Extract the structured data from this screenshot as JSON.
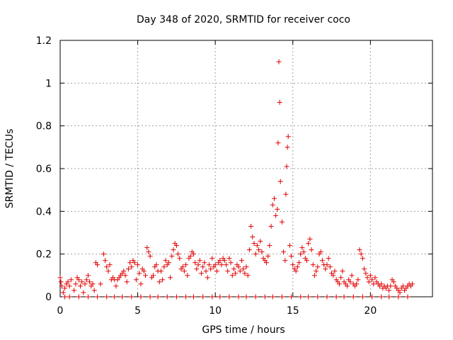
{
  "chart_data": {
    "type": "scatter",
    "title": "Day 348 of 2020, SRMTID for receiver coco",
    "xlabel": "GPS time / hours",
    "ylabel": "SRMTID / TECUs",
    "xlim": [
      0,
      24
    ],
    "ylim": [
      0,
      1.2
    ],
    "x_ticks": [
      0,
      5,
      10,
      15,
      20
    ],
    "y_ticks": [
      0,
      0.2,
      0.4,
      0.6,
      0.8,
      1,
      1.2
    ],
    "x_tick_labels": [
      "0",
      "5",
      "10",
      "15",
      "20"
    ],
    "y_tick_labels": [
      "0",
      "0.2",
      "0.4",
      "0.6",
      "0.8",
      "1",
      "1.2"
    ],
    "grid": true,
    "marker": "+",
    "color": "#e00000",
    "series": [
      {
        "name": "SRMTID",
        "points": [
          [
            0.0,
            0.09
          ],
          [
            0.05,
            0.07
          ],
          [
            0.1,
            0.05
          ],
          [
            0.2,
            0.02
          ],
          [
            0.3,
            0.04
          ],
          [
            0.4,
            0.06
          ],
          [
            0.5,
            0.07
          ],
          [
            0.6,
            0.05
          ],
          [
            0.7,
            0.08
          ],
          [
            0.9,
            0.03
          ],
          [
            1.0,
            0.06
          ],
          [
            1.1,
            0.09
          ],
          [
            1.2,
            0.08
          ],
          [
            1.3,
            0.05
          ],
          [
            1.4,
            0.07
          ],
          [
            1.5,
            0.02
          ],
          [
            1.6,
            0.06
          ],
          [
            1.7,
            0.08
          ],
          [
            1.8,
            0.1
          ],
          [
            1.9,
            0.07
          ],
          [
            2.0,
            0.05
          ],
          [
            2.1,
            0.06
          ],
          [
            2.2,
            0.03
          ],
          [
            2.3,
            0.16
          ],
          [
            2.4,
            0.15
          ],
          [
            2.6,
            0.06
          ],
          [
            2.8,
            0.2
          ],
          [
            2.9,
            0.17
          ],
          [
            3.0,
            0.14
          ],
          [
            3.1,
            0.12
          ],
          [
            3.2,
            0.15
          ],
          [
            3.3,
            0.08
          ],
          [
            3.4,
            0.09
          ],
          [
            3.5,
            0.08
          ],
          [
            3.6,
            0.05
          ],
          [
            3.7,
            0.08
          ],
          [
            3.8,
            0.09
          ],
          [
            3.9,
            0.1
          ],
          [
            4.0,
            0.11
          ],
          [
            4.1,
            0.12
          ],
          [
            4.2,
            0.1
          ],
          [
            4.3,
            0.07
          ],
          [
            4.4,
            0.13
          ],
          [
            4.5,
            0.16
          ],
          [
            4.6,
            0.14
          ],
          [
            4.7,
            0.17
          ],
          [
            4.8,
            0.16
          ],
          [
            4.9,
            0.08
          ],
          [
            5.0,
            0.15
          ],
          [
            5.1,
            0.11
          ],
          [
            5.2,
            0.06
          ],
          [
            5.3,
            0.13
          ],
          [
            5.4,
            0.12
          ],
          [
            5.5,
            0.1
          ],
          [
            5.6,
            0.23
          ],
          [
            5.7,
            0.21
          ],
          [
            5.8,
            0.19
          ],
          [
            5.9,
            0.09
          ],
          [
            6.0,
            0.1
          ],
          [
            6.1,
            0.14
          ],
          [
            6.2,
            0.15
          ],
          [
            6.3,
            0.12
          ],
          [
            6.4,
            0.07
          ],
          [
            6.5,
            0.12
          ],
          [
            6.6,
            0.08
          ],
          [
            6.7,
            0.14
          ],
          [
            6.8,
            0.17
          ],
          [
            6.9,
            0.15
          ],
          [
            7.0,
            0.16
          ],
          [
            7.1,
            0.09
          ],
          [
            7.2,
            0.19
          ],
          [
            7.3,
            0.22
          ],
          [
            7.4,
            0.25
          ],
          [
            7.5,
            0.24
          ],
          [
            7.6,
            0.2
          ],
          [
            7.7,
            0.18
          ],
          [
            7.8,
            0.13
          ],
          [
            7.9,
            0.14
          ],
          [
            8.0,
            0.12
          ],
          [
            8.1,
            0.15
          ],
          [
            8.2,
            0.1
          ],
          [
            8.3,
            0.18
          ],
          [
            8.4,
            0.19
          ],
          [
            8.5,
            0.21
          ],
          [
            8.6,
            0.2
          ],
          [
            8.7,
            0.16
          ],
          [
            8.8,
            0.13
          ],
          [
            8.9,
            0.15
          ],
          [
            9.0,
            0.17
          ],
          [
            9.1,
            0.11
          ],
          [
            9.2,
            0.14
          ],
          [
            9.3,
            0.16
          ],
          [
            9.4,
            0.12
          ],
          [
            9.5,
            0.09
          ],
          [
            9.6,
            0.15
          ],
          [
            9.7,
            0.13
          ],
          [
            9.8,
            0.18
          ],
          [
            9.9,
            0.14
          ],
          [
            10.0,
            0.15
          ],
          [
            10.1,
            0.12
          ],
          [
            10.2,
            0.16
          ],
          [
            10.3,
            0.17
          ],
          [
            10.4,
            0.15
          ],
          [
            10.5,
            0.18
          ],
          [
            10.6,
            0.17
          ],
          [
            10.7,
            0.15
          ],
          [
            10.8,
            0.12
          ],
          [
            10.9,
            0.18
          ],
          [
            11.0,
            0.16
          ],
          [
            11.1,
            0.1
          ],
          [
            11.2,
            0.13
          ],
          [
            11.3,
            0.11
          ],
          [
            11.4,
            0.15
          ],
          [
            11.5,
            0.14
          ],
          [
            11.6,
            0.12
          ],
          [
            11.7,
            0.17
          ],
          [
            11.8,
            0.13
          ],
          [
            11.9,
            0.11
          ],
          [
            12.0,
            0.14
          ],
          [
            12.1,
            0.1
          ],
          [
            12.2,
            0.22
          ],
          [
            12.3,
            0.33
          ],
          [
            12.4,
            0.28
          ],
          [
            12.5,
            0.25
          ],
          [
            12.6,
            0.2
          ],
          [
            12.7,
            0.24
          ],
          [
            12.8,
            0.22
          ],
          [
            12.9,
            0.26
          ],
          [
            13.0,
            0.21
          ],
          [
            13.1,
            0.18
          ],
          [
            13.2,
            0.17
          ],
          [
            13.3,
            0.16
          ],
          [
            13.4,
            0.19
          ],
          [
            13.5,
            0.24
          ],
          [
            13.6,
            0.33
          ],
          [
            13.7,
            0.43
          ],
          [
            13.8,
            0.46
          ],
          [
            13.9,
            0.38
          ],
          [
            14.0,
            0.41
          ],
          [
            14.05,
            0.72
          ],
          [
            14.1,
            1.1
          ],
          [
            14.15,
            0.91
          ],
          [
            14.2,
            0.54
          ],
          [
            14.3,
            0.35
          ],
          [
            14.4,
            0.21
          ],
          [
            14.5,
            0.17
          ],
          [
            14.55,
            0.48
          ],
          [
            14.6,
            0.61
          ],
          [
            14.65,
            0.7
          ],
          [
            14.7,
            0.75
          ],
          [
            14.8,
            0.24
          ],
          [
            14.9,
            0.19
          ],
          [
            15.0,
            0.15
          ],
          [
            15.1,
            0.13
          ],
          [
            15.2,
            0.12
          ],
          [
            15.3,
            0.14
          ],
          [
            15.4,
            0.16
          ],
          [
            15.5,
            0.2
          ],
          [
            15.6,
            0.23
          ],
          [
            15.7,
            0.21
          ],
          [
            15.8,
            0.18
          ],
          [
            15.9,
            0.17
          ],
          [
            16.0,
            0.25
          ],
          [
            16.1,
            0.27
          ],
          [
            16.2,
            0.22
          ],
          [
            16.3,
            0.15
          ],
          [
            16.4,
            0.1
          ],
          [
            16.5,
            0.12
          ],
          [
            16.6,
            0.14
          ],
          [
            16.7,
            0.2
          ],
          [
            16.8,
            0.21
          ],
          [
            16.9,
            0.17
          ],
          [
            17.0,
            0.15
          ],
          [
            17.1,
            0.13
          ],
          [
            17.2,
            0.15
          ],
          [
            17.3,
            0.18
          ],
          [
            17.4,
            0.14
          ],
          [
            17.5,
            0.11
          ],
          [
            17.6,
            0.1
          ],
          [
            17.7,
            0.12
          ],
          [
            17.8,
            0.08
          ],
          [
            17.9,
            0.07
          ],
          [
            18.0,
            0.06
          ],
          [
            18.1,
            0.09
          ],
          [
            18.2,
            0.12
          ],
          [
            18.3,
            0.07
          ],
          [
            18.4,
            0.06
          ],
          [
            18.5,
            0.05
          ],
          [
            18.6,
            0.08
          ],
          [
            18.7,
            0.07
          ],
          [
            18.8,
            0.1
          ],
          [
            18.9,
            0.06
          ],
          [
            19.0,
            0.05
          ],
          [
            19.1,
            0.06
          ],
          [
            19.2,
            0.08
          ],
          [
            19.3,
            0.22
          ],
          [
            19.4,
            0.2
          ],
          [
            19.5,
            0.18
          ],
          [
            19.6,
            0.13
          ],
          [
            19.7,
            0.11
          ],
          [
            19.8,
            0.09
          ],
          [
            19.9,
            0.07
          ],
          [
            20.0,
            0.1
          ],
          [
            20.1,
            0.08
          ],
          [
            20.2,
            0.06
          ],
          [
            20.3,
            0.09
          ],
          [
            20.4,
            0.07
          ],
          [
            20.5,
            0.06
          ],
          [
            20.6,
            0.05
          ],
          [
            20.7,
            0.06
          ],
          [
            20.8,
            0.04
          ],
          [
            20.9,
            0.05
          ],
          [
            21.0,
            0.04
          ],
          [
            21.1,
            0.05
          ],
          [
            21.2,
            0.03
          ],
          [
            21.3,
            0.05
          ],
          [
            21.4,
            0.08
          ],
          [
            21.5,
            0.07
          ],
          [
            21.6,
            0.05
          ],
          [
            21.7,
            0.04
          ],
          [
            21.8,
            0.03
          ],
          [
            21.9,
            0.02
          ],
          [
            22.0,
            0.04
          ],
          [
            22.1,
            0.05
          ],
          [
            22.2,
            0.03
          ],
          [
            22.3,
            0.04
          ],
          [
            22.4,
            0.05
          ],
          [
            22.5,
            0.06
          ],
          [
            22.6,
            0.05
          ],
          [
            22.7,
            0.06
          ],
          [
            0.3,
            0.0
          ],
          [
            0.6,
            0.0
          ],
          [
            1.2,
            0.0
          ],
          [
            1.8,
            0.0
          ],
          [
            2.4,
            0.0
          ],
          [
            3.0,
            0.0
          ],
          [
            3.5,
            0.0
          ],
          [
            4.0,
            0.0
          ],
          [
            4.6,
            0.0
          ],
          [
            5.2,
            0.0
          ],
          [
            5.8,
            0.0
          ],
          [
            6.3,
            0.0
          ],
          [
            6.9,
            0.0
          ],
          [
            7.5,
            0.0
          ],
          [
            8.1,
            0.0
          ],
          [
            8.6,
            0.0
          ],
          [
            9.2,
            0.0
          ],
          [
            9.8,
            0.0
          ],
          [
            10.3,
            0.0
          ],
          [
            10.9,
            0.0
          ],
          [
            11.5,
            0.0
          ],
          [
            12.0,
            0.0
          ],
          [
            12.6,
            0.0
          ],
          [
            13.2,
            0.0
          ],
          [
            13.7,
            0.0
          ],
          [
            14.3,
            0.0
          ],
          [
            14.9,
            0.0
          ],
          [
            15.5,
            0.0
          ],
          [
            16.0,
            0.0
          ],
          [
            16.6,
            0.0
          ],
          [
            17.2,
            0.0
          ],
          [
            17.8,
            0.0
          ],
          [
            18.3,
            0.0
          ],
          [
            18.9,
            0.0
          ],
          [
            19.5,
            0.0
          ],
          [
            20.1,
            0.0
          ],
          [
            20.7,
            0.0
          ],
          [
            21.2,
            0.0
          ],
          [
            21.8,
            0.0
          ],
          [
            22.4,
            0.0
          ]
        ]
      }
    ]
  }
}
